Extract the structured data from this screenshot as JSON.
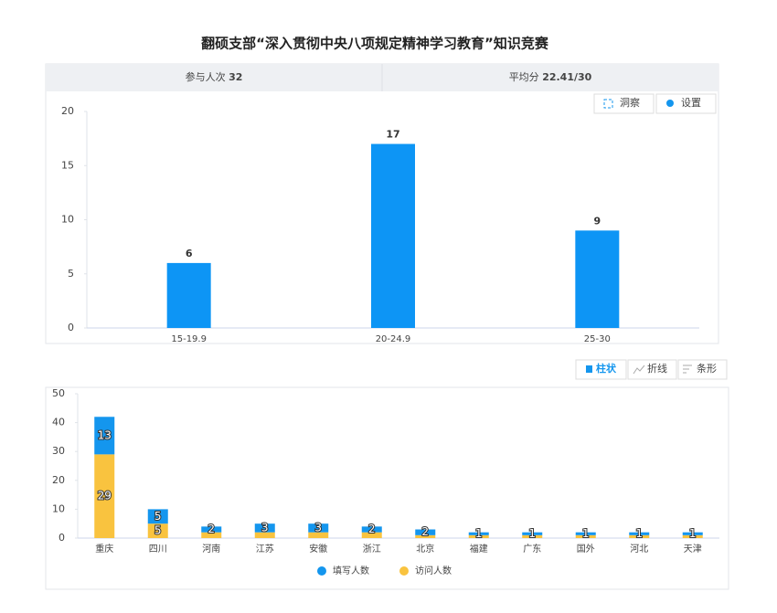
{
  "header": {
    "title": "翻硕支部“深入贯彻中央八项规定精神学习教育”知识竞赛",
    "stats": [
      {
        "label": "参与人次",
        "value": "32"
      },
      {
        "label": "平均分",
        "value": "22.41/30"
      }
    ]
  },
  "toolbar_top": [
    "洞察",
    "设置"
  ],
  "toolbar_bottom": [
    "柱状",
    "折线",
    "条形"
  ],
  "chart_data": [
    {
      "type": "bar",
      "categories": [
        "15-19.9",
        "20-24.9",
        "25-30"
      ],
      "values": [
        6,
        17,
        9
      ],
      "color": "#0d95f5",
      "ylim": [
        0,
        20
      ],
      "yticks": [
        0,
        5,
        10,
        15,
        20
      ],
      "grid": false
    },
    {
      "type": "stacked_bar",
      "categories": [
        "重庆",
        "四川",
        "河南",
        "江苏",
        "安徽",
        "浙江",
        "北京",
        "福建",
        "广东",
        "国外",
        "河北",
        "天津"
      ],
      "series": [
        {
          "name": "访问人数",
          "color": "#f9c33f",
          "values": [
            29,
            5,
            2,
            2,
            2,
            2,
            1,
            1,
            1,
            1,
            1,
            1
          ],
          "value_labels": [
            "29",
            "5",
            null,
            null,
            null,
            null,
            null,
            null,
            null,
            null,
            null,
            null
          ]
        },
        {
          "name": "填写人数",
          "color": "#1496ee",
          "values": [
            13,
            5,
            2,
            3,
            3,
            2,
            2,
            1,
            1,
            1,
            1,
            1
          ]
        }
      ],
      "ylim": [
        0,
        50
      ],
      "yticks": [
        0,
        10,
        20,
        30,
        40,
        50
      ],
      "grid": false,
      "legend": "bottom"
    }
  ]
}
